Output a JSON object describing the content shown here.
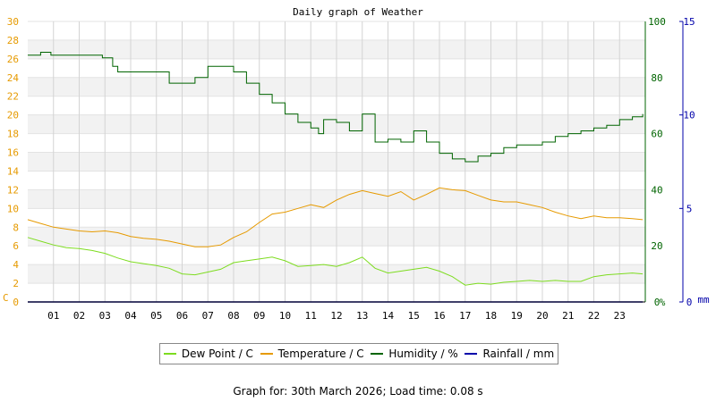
{
  "chart_data": {
    "type": "line",
    "title": "Daily graph of Weather",
    "x_ticks": [
      "01",
      "02",
      "03",
      "04",
      "05",
      "06",
      "07",
      "08",
      "09",
      "10",
      "11",
      "12",
      "13",
      "14",
      "15",
      "16",
      "17",
      "18",
      "19",
      "20",
      "21",
      "22",
      "23"
    ],
    "x_range": [
      0,
      24
    ],
    "grid": true,
    "legend_position": "bottom-center",
    "axes": {
      "left": {
        "unit_label": "C",
        "range": [
          0,
          30
        ],
        "ticks": [
          "0",
          "2",
          "4",
          "6",
          "8",
          "10",
          "12",
          "14",
          "16",
          "18",
          "20",
          "22",
          "24",
          "26",
          "28",
          "30"
        ],
        "color": "#e69a00"
      },
      "right1": {
        "unit_label": "%",
        "range": [
          0,
          100
        ],
        "ticks": [
          "0",
          "20",
          "40",
          "60",
          "80",
          "100"
        ],
        "color": "#006400"
      },
      "right2": {
        "unit_label": "mm",
        "range": [
          0,
          15
        ],
        "ticks": [
          "0",
          "5",
          "10",
          "15"
        ],
        "color": "#0000aa"
      }
    },
    "series": [
      {
        "name": "Dew Point / C",
        "axis": "left",
        "color": "#7ddc1f",
        "x": [
          0,
          0.5,
          1,
          1.5,
          2,
          2.5,
          3,
          3.5,
          4,
          4.5,
          5,
          5.5,
          6,
          6.5,
          7,
          7.5,
          8,
          8.5,
          9,
          9.5,
          10,
          10.5,
          11,
          11.5,
          12,
          12.5,
          13,
          13.5,
          14,
          14.5,
          15,
          15.5,
          16,
          16.5,
          17,
          17.5,
          18,
          18.5,
          19,
          19.5,
          20,
          20.5,
          21,
          21.5,
          22,
          22.5,
          23,
          23.5,
          23.9
        ],
        "y": [
          6.9,
          6.5,
          6.1,
          5.8,
          5.7,
          5.5,
          5.2,
          4.7,
          4.3,
          4.1,
          3.9,
          3.6,
          3.0,
          2.9,
          3.2,
          3.5,
          4.2,
          4.4,
          4.6,
          4.8,
          4.4,
          3.8,
          3.9,
          4.0,
          3.8,
          4.2,
          4.8,
          3.6,
          3.1,
          3.3,
          3.5,
          3.7,
          3.3,
          2.7,
          1.8,
          2.0,
          1.9,
          2.1,
          2.2,
          2.3,
          2.2,
          2.3,
          2.2,
          2.2,
          2.7,
          2.9,
          3.0,
          3.1,
          3.0
        ]
      },
      {
        "name": "Temperature / C",
        "axis": "left",
        "color": "#e69a00",
        "x": [
          0,
          0.5,
          1,
          1.5,
          2,
          2.5,
          3,
          3.5,
          4,
          4.5,
          5,
          5.5,
          6,
          6.5,
          7,
          7.5,
          8,
          8.5,
          9,
          9.5,
          10,
          10.5,
          11,
          11.5,
          12,
          12.5,
          13,
          13.5,
          14,
          14.5,
          15,
          15.5,
          16,
          16.5,
          17,
          17.5,
          18,
          18.5,
          19,
          19.5,
          20,
          20.5,
          21,
          21.5,
          22,
          22.5,
          23,
          23.5,
          23.9
        ],
        "y": [
          8.8,
          8.4,
          8.0,
          7.8,
          7.6,
          7.5,
          7.6,
          7.4,
          7.0,
          6.8,
          6.7,
          6.5,
          6.2,
          5.9,
          5.9,
          6.1,
          6.9,
          7.5,
          8.5,
          9.4,
          9.6,
          10.0,
          10.4,
          10.1,
          10.9,
          11.5,
          11.9,
          11.6,
          11.3,
          11.8,
          10.9,
          11.5,
          12.2,
          12.0,
          11.9,
          11.4,
          10.9,
          10.7,
          10.7,
          10.4,
          10.1,
          9.6,
          9.2,
          8.9,
          9.2,
          9.0,
          9.0,
          8.9,
          8.8
        ]
      },
      {
        "name": "Humidity / %",
        "axis": "right1",
        "color": "#006400",
        "x": [
          0,
          0.5,
          0.9,
          1,
          1.5,
          2,
          2.5,
          2.9,
          3.3,
          3.5,
          4,
          4.5,
          5,
          5.5,
          6,
          6.5,
          7,
          7.5,
          8,
          8.5,
          9,
          9.5,
          10,
          10.5,
          11,
          11.3,
          11.5,
          12,
          12.5,
          13,
          13.5,
          14,
          14.5,
          15,
          15.5,
          16,
          16.5,
          17,
          17.5,
          18,
          18.5,
          19,
          19.5,
          20,
          20.5,
          21,
          21.5,
          22,
          22.5,
          23,
          23.5,
          23.9
        ],
        "y": [
          88,
          89,
          88,
          88,
          88,
          88,
          88,
          87,
          84,
          82,
          82,
          82,
          82,
          78,
          78,
          80,
          84,
          84,
          82,
          78,
          74,
          71,
          67,
          64,
          62,
          60,
          65,
          64,
          61,
          67,
          57,
          58,
          57,
          61,
          57,
          53,
          51,
          50,
          52,
          53,
          55,
          56,
          56,
          57,
          59,
          60,
          61,
          62,
          63,
          65,
          66,
          67
        ]
      },
      {
        "name": "Rainfall / mm",
        "axis": "right2",
        "color": "#0000aa",
        "x": [
          0,
          23.9
        ],
        "y": [
          0,
          0
        ]
      }
    ]
  },
  "legend": {
    "dew": "Dew Point / C",
    "temp": "Temperature / C",
    "hum": "Humidity / %",
    "rain": "Rainfall / mm"
  },
  "footer": "Graph for: 30th March 2026; Load time: 0.08 s"
}
